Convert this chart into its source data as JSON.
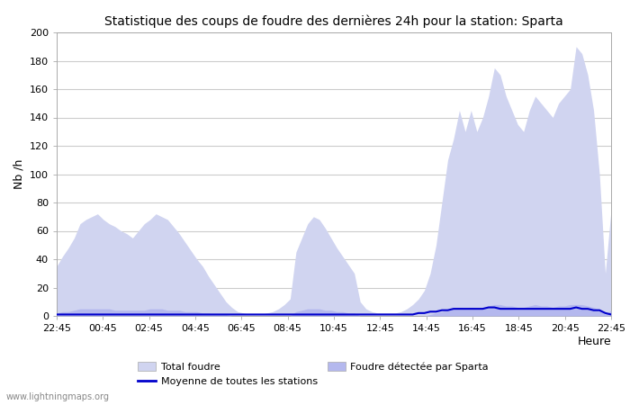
{
  "title": "Statistique des coups de foudre des dernières 24h pour la station: Sparta",
  "xlabel": "Heure",
  "ylabel": "Nb /h",
  "ylim": [
    0,
    200
  ],
  "yticks": [
    0,
    20,
    40,
    60,
    80,
    100,
    120,
    140,
    160,
    180,
    200
  ],
  "xtick_labels": [
    "22:45",
    "00:45",
    "02:45",
    "04:45",
    "06:45",
    "08:45",
    "10:45",
    "12:45",
    "14:45",
    "16:45",
    "18:45",
    "20:45",
    "22:45"
  ],
  "watermark": "www.lightningmaps.org",
  "fill_color_total": "#d0d4f0",
  "fill_color_sparta": "#b4b8ee",
  "line_color_mean": "#0000cc",
  "background_color": "#ffffff",
  "grid_color": "#cccccc",
  "legend_total": "Total foudre",
  "legend_mean": "Moyenne de toutes les stations",
  "legend_sparta": "Foudre détectée par Sparta",
  "total_foudre": [
    35,
    42,
    48,
    55,
    65,
    68,
    70,
    72,
    68,
    65,
    63,
    60,
    58,
    55,
    60,
    65,
    68,
    72,
    70,
    68,
    63,
    58,
    52,
    46,
    40,
    35,
    28,
    22,
    16,
    10,
    6,
    3,
    2,
    1,
    1,
    1,
    2,
    3,
    5,
    8,
    12,
    45,
    55,
    65,
    70,
    68,
    62,
    55,
    48,
    42,
    36,
    30,
    10,
    5,
    3,
    2,
    2,
    2,
    2,
    3,
    5,
    8,
    12,
    18,
    30,
    50,
    80,
    110,
    125,
    145,
    130,
    145,
    130,
    140,
    155,
    175,
    170,
    155,
    145,
    135,
    130,
    145,
    155,
    150,
    145,
    140,
    150,
    155,
    160,
    190,
    185,
    170,
    145,
    100,
    30,
    75
  ],
  "sparta_foudre": [
    2,
    3,
    3,
    4,
    5,
    5,
    5,
    5,
    5,
    5,
    4,
    4,
    4,
    4,
    4,
    4,
    5,
    5,
    5,
    4,
    4,
    4,
    3,
    3,
    3,
    2,
    2,
    1,
    1,
    1,
    0,
    0,
    0,
    0,
    0,
    0,
    0,
    0,
    0,
    0,
    0,
    3,
    4,
    5,
    5,
    5,
    4,
    4,
    3,
    3,
    2,
    2,
    0,
    0,
    0,
    0,
    0,
    0,
    0,
    0,
    0,
    0,
    0,
    0,
    1,
    2,
    3,
    4,
    5,
    6,
    5,
    6,
    5,
    6,
    7,
    8,
    8,
    7,
    7,
    6,
    6,
    7,
    8,
    7,
    7,
    6,
    7,
    7,
    8,
    8,
    8,
    7,
    6,
    4,
    1,
    4
  ],
  "mean_line": [
    1,
    1,
    1,
    1,
    1,
    1,
    1,
    1,
    1,
    1,
    1,
    1,
    1,
    1,
    1,
    1,
    1,
    1,
    1,
    1,
    1,
    1,
    1,
    1,
    1,
    1,
    1,
    1,
    1,
    1,
    1,
    1,
    1,
    1,
    1,
    1,
    1,
    1,
    1,
    1,
    1,
    1,
    1,
    1,
    1,
    1,
    1,
    1,
    1,
    1,
    1,
    1,
    1,
    1,
    1,
    1,
    1,
    1,
    1,
    1,
    1,
    1,
    2,
    2,
    3,
    3,
    4,
    4,
    5,
    5,
    5,
    5,
    5,
    5,
    6,
    6,
    5,
    5,
    5,
    5,
    5,
    5,
    5,
    5,
    5,
    5,
    5,
    5,
    5,
    6,
    5,
    5,
    4,
    4,
    2,
    1
  ]
}
